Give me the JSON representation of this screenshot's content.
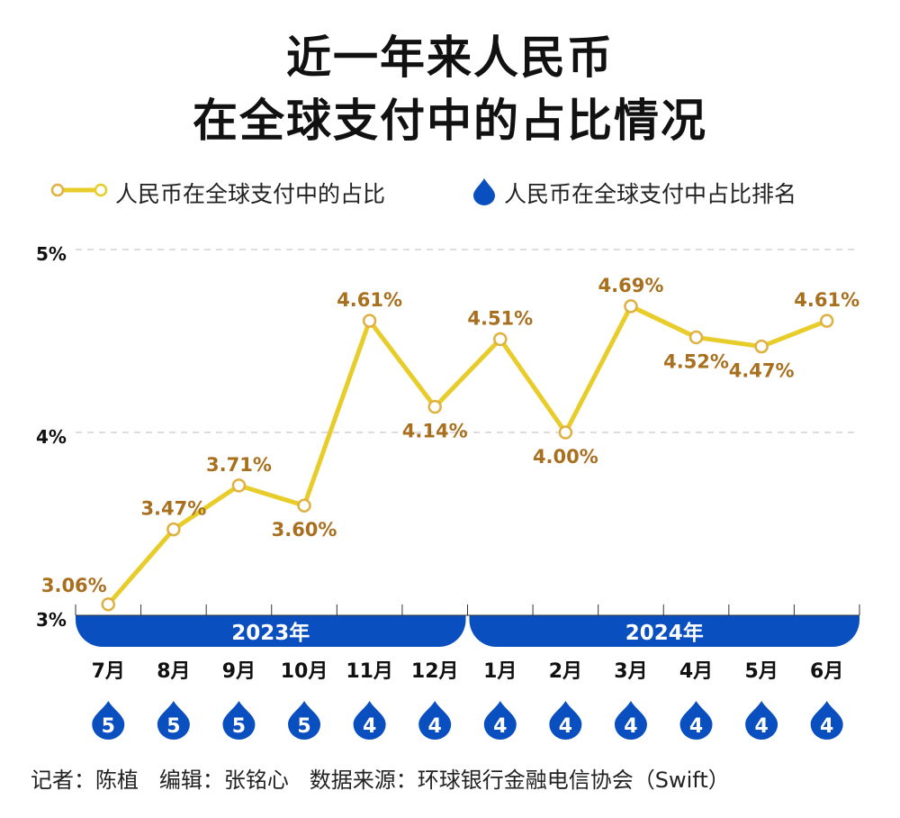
{
  "title_lines": [
    "近一年来人民币",
    "在全球支付中的占比情况"
  ],
  "legend": {
    "share_label": "人民币在全球支付中的占比",
    "rank_label": "人民币在全球支付中占比排名"
  },
  "colors": {
    "line": "#e8cc2a",
    "label": "#a8701e",
    "blue": "#0a4fc0",
    "grid": "#bbbbbb"
  },
  "chart_data": {
    "type": "line",
    "years": [
      {
        "label": "2023年",
        "months": 6
      },
      {
        "label": "2024年",
        "months": 6
      }
    ],
    "categories": [
      "7月",
      "8月",
      "9月",
      "10月",
      "11月",
      "12月",
      "1月",
      "2月",
      "3月",
      "4月",
      "5月",
      "6月"
    ],
    "series": [
      {
        "name": "人民币在全球支付中的占比",
        "values": [
          3.06,
          3.47,
          3.71,
          3.6,
          4.61,
          4.14,
          4.51,
          4.0,
          4.69,
          4.52,
          4.47,
          4.61
        ],
        "data_labels": [
          "3.06%",
          "3.47%",
          "3.71%",
          "3.60%",
          "4.61%",
          "4.14%",
          "4.51%",
          "4.00%",
          "4.69%",
          "4.52%",
          "4.47%",
          "4.61%"
        ]
      },
      {
        "name": "人民币在全球支付中占比排名",
        "values": [
          5,
          5,
          5,
          5,
          4,
          4,
          4,
          4,
          4,
          4,
          4,
          4
        ]
      }
    ],
    "ylim": [
      3,
      5
    ],
    "yticks": [
      "3%",
      "4%",
      "5%"
    ],
    "grid": true,
    "legend_position": "top"
  },
  "footer": "记者：陈植   编辑：张铭心   数据来源：环球银行金融电信协会（Swift）"
}
